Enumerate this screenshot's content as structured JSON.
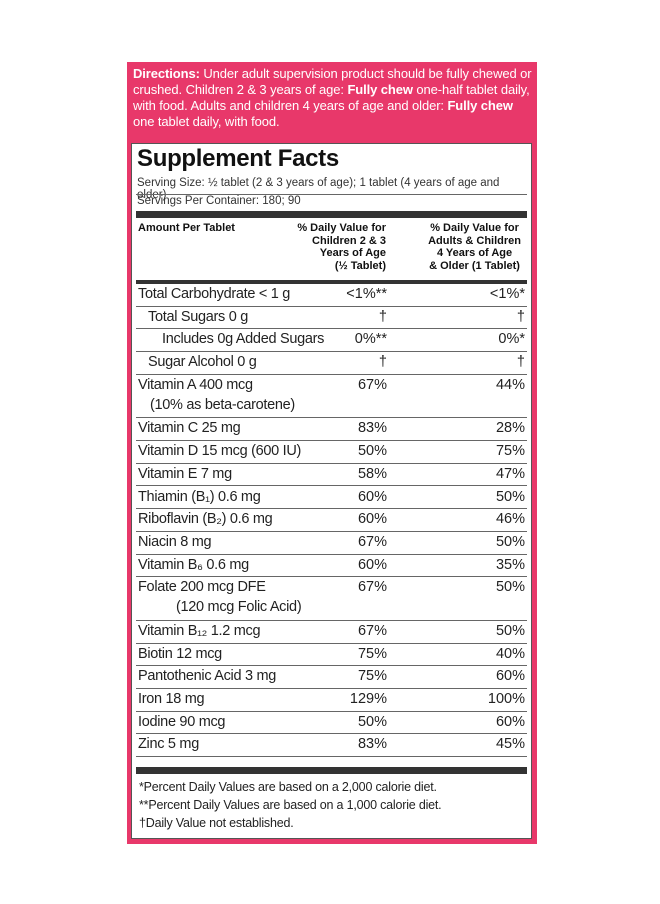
{
  "directions": {
    "label": "Directions:",
    "text1": " Under adult supervision product should be fully chewed or crushed. Children 2 & 3 years of age: ",
    "bold1": "Fully chew",
    "text2": " one-half tablet daily, with food. Adults and children 4 years of age and older: ",
    "bold2": "Fully chew",
    "text3": " one tablet daily, with food."
  },
  "facts": {
    "title": "Supplement Facts",
    "serving_size": "Serving Size: ½ tablet (2 & 3 years of age); 1 tablet (4 years of age and older)",
    "servings_per_container": "Servings Per Container: 180; 90",
    "header": {
      "amount": "Amount Per Tablet",
      "col1_l1": "% Daily Value for",
      "col1_l2": "Children 2 & 3",
      "col1_l3": "Years of Age",
      "col1_l4": "(½ Tablet)",
      "col2_l1": "% Daily Value for",
      "col2_l2": "Adults & Children",
      "col2_l3": "4 Years of Age",
      "col2_l4": "& Older (1 Tablet)"
    },
    "rows": [
      {
        "name": "Total Carbohydrate < 1 g",
        "c1": "<1%**",
        "c2": "<1%*"
      },
      {
        "name": "Total Sugars 0 g",
        "c1": "†",
        "c2": "†"
      },
      {
        "name": "Includes 0g Added Sugars",
        "c1": "0%**",
        "c2": "0%*"
      },
      {
        "name": "Sugar Alcohol 0 g",
        "c1": "†",
        "c2": "†"
      },
      {
        "name": "Vitamin A 400 mcg",
        "sub": "(10% as beta-carotene)",
        "c1": "67%",
        "c2": "44%"
      },
      {
        "name": "Vitamin C 25 mg",
        "c1": "83%",
        "c2": "28%"
      },
      {
        "name": "Vitamin D 15 mcg (600 IU)",
        "c1": "50%",
        "c2": "75%"
      },
      {
        "name": "Vitamin E 7 mg",
        "c1": "58%",
        "c2": "47%"
      },
      {
        "name": "Thiamin (B₁) 0.6 mg",
        "c1": "60%",
        "c2": "50%"
      },
      {
        "name": "Riboflavin (B₂) 0.6 mg",
        "c1": "60%",
        "c2": "46%"
      },
      {
        "name": "Niacin 8 mg",
        "c1": "67%",
        "c2": "50%"
      },
      {
        "name": "Vitamin B₆ 0.6 mg",
        "c1": "60%",
        "c2": "35%"
      },
      {
        "name": "Folate 200 mcg DFE",
        "sub": "(120 mcg Folic Acid)",
        "c1": "67%",
        "c2": "50%"
      },
      {
        "name": "Vitamin B₁₂ 1.2 mcg",
        "c1": "67%",
        "c2": "50%"
      },
      {
        "name": "Biotin 12 mcg",
        "c1": "75%",
        "c2": "40%"
      },
      {
        "name": "Pantothenic Acid 3 mg",
        "c1": "75%",
        "c2": "60%"
      },
      {
        "name": "Iron 18 mg",
        "c1": "129%",
        "c2": "100%"
      },
      {
        "name": "Iodine 90 mcg",
        "c1": "50%",
        "c2": "60%"
      },
      {
        "name": "Zinc 5 mg",
        "c1": "83%",
        "c2": "45%"
      }
    ],
    "footnotes": [
      "*Percent Daily Values are based on a 2,000 calorie diet.",
      "**Percent Daily Values are based on a 1,000 calorie diet.",
      "†Daily Value not established."
    ]
  },
  "colors": {
    "panel": "#e8386a",
    "text": "#222222"
  }
}
